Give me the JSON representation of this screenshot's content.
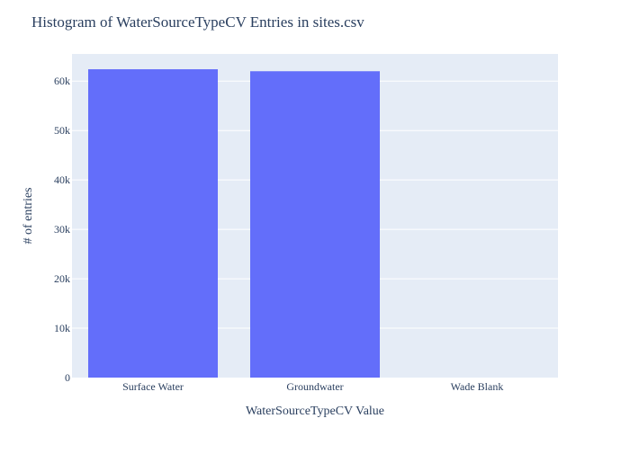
{
  "chart_data": {
    "type": "bar",
    "title": "Histogram of WaterSourceTypeCV Entries in sites.csv",
    "xlabel": "WaterSourceTypeCV Value",
    "ylabel": "# of entries",
    "categories": [
      "Surface Water",
      "Groundwater",
      "Wade Blank"
    ],
    "values": [
      62400,
      62000,
      0
    ],
    "ylim": [
      0,
      65500
    ],
    "yticks": [
      0,
      10000,
      20000,
      30000,
      40000,
      50000,
      60000
    ],
    "ytick_labels": [
      "0",
      "10k",
      "20k",
      "30k",
      "40k",
      "50k",
      "60k"
    ],
    "grid": true,
    "legend": "none",
    "colors": {
      "bar": "#636efa",
      "plot_background": "#e5ecf6",
      "grid": "#ffffff",
      "text": "#2a3f5f"
    }
  }
}
